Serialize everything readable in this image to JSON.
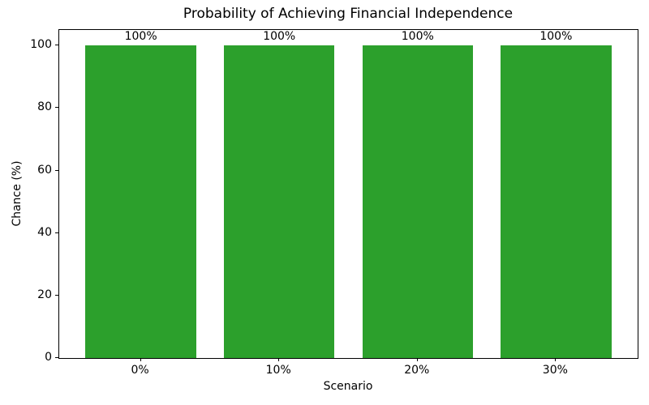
{
  "chart_data": {
    "type": "bar",
    "title": "Probability of Achieving Financial Independence",
    "xlabel": "Scenario",
    "ylabel": "Chance (%)",
    "categories": [
      "0%",
      "10%",
      "20%",
      "30%"
    ],
    "values": [
      100,
      100,
      100,
      100
    ],
    "bar_labels": [
      "100%",
      "100%",
      "100%",
      "100%"
    ],
    "yticks": [
      0,
      20,
      40,
      60,
      80,
      100
    ],
    "ylim": [
      0,
      105
    ],
    "bar_color": "#2ca02c",
    "grid": false,
    "legend_position": "none"
  }
}
